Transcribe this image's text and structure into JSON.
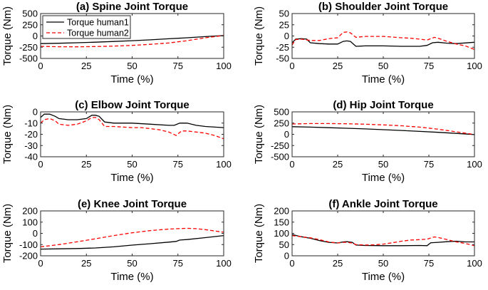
{
  "chart_data": [
    {
      "type": "line",
      "title": "(a) Spine Joint Torque",
      "xlabel": "Time (%)",
      "ylabel": "Torque (Nm)",
      "xlim": [
        0,
        100
      ],
      "ylim": [
        -500,
        500
      ],
      "xticks": [
        0,
        25,
        50,
        75,
        100
      ],
      "yticks": [
        500,
        250,
        0,
        -250,
        -500
      ],
      "legend": "top-left",
      "series": [
        {
          "name": "Torque human1",
          "color": "#000000",
          "dash": "solid",
          "x": [
            0,
            10,
            20,
            30,
            40,
            50,
            60,
            70,
            80,
            90,
            100
          ],
          "y": [
            -170,
            -162,
            -150,
            -138,
            -122,
            -105,
            -85,
            -62,
            -40,
            -15,
            10
          ]
        },
        {
          "name": "Torque human2",
          "color": "#ff0000",
          "dash": "dashed",
          "x": [
            0,
            10,
            20,
            30,
            40,
            50,
            60,
            70,
            80,
            90,
            100
          ],
          "y": [
            -230,
            -240,
            -242,
            -235,
            -225,
            -210,
            -185,
            -155,
            -105,
            -40,
            10
          ]
        }
      ]
    },
    {
      "type": "line",
      "title": "(b) Shoulder Joint Torque",
      "xlabel": "Time (%)",
      "ylabel": "Torque (Nm)",
      "xlim": [
        0,
        100
      ],
      "ylim": [
        -50,
        50
      ],
      "xticks": [
        0,
        25,
        50,
        75,
        100
      ],
      "yticks": [
        50,
        25,
        0,
        -25,
        -50
      ],
      "series": [
        {
          "name": "Torque human1",
          "color": "#000000",
          "dash": "solid",
          "x": [
            0,
            2,
            5,
            8,
            10,
            15,
            20,
            25,
            28,
            30,
            32,
            35,
            40,
            50,
            60,
            70,
            74,
            77,
            80,
            85,
            90,
            100
          ],
          "y": [
            -15,
            -7,
            -6,
            -7,
            -15,
            -17,
            -18,
            -18,
            -12,
            -11,
            -12,
            -23,
            -22,
            -22,
            -23,
            -23,
            -21,
            -15,
            -14,
            -16,
            -17,
            -14
          ]
        },
        {
          "name": "Torque human2",
          "color": "#ff0000",
          "dash": "dashed",
          "x": [
            0,
            2,
            5,
            10,
            15,
            20,
            25,
            28,
            30,
            32,
            35,
            40,
            50,
            60,
            65,
            70,
            74,
            78,
            80,
            85,
            90,
            95,
            100
          ],
          "y": [
            -20,
            -8,
            -7,
            -10,
            -10,
            -6,
            -4,
            8,
            9,
            7,
            -3,
            -1,
            -1,
            -4,
            -5,
            -7,
            -9,
            -3,
            -5,
            -12,
            -18,
            -22,
            -30
          ]
        }
      ]
    },
    {
      "type": "line",
      "title": "(c) Elbow Joint Torque",
      "xlabel": "Time (%)",
      "ylabel": "Torque (Nm)",
      "xlim": [
        0,
        100
      ],
      "ylim": [
        -40,
        0
      ],
      "xticks": [
        0,
        25,
        50,
        75,
        100
      ],
      "yticks": [
        0,
        -10,
        -20,
        -30,
        -40
      ],
      "series": [
        {
          "name": "Torque human1",
          "color": "#000000",
          "dash": "solid",
          "x": [
            0,
            2,
            5,
            8,
            10,
            15,
            20,
            25,
            28,
            30,
            32,
            35,
            40,
            50,
            60,
            70,
            73,
            76,
            80,
            85,
            90,
            100
          ],
          "y": [
            -5,
            -2,
            -2,
            -4,
            -6,
            -7,
            -7,
            -6,
            -3,
            -3,
            -4,
            -9,
            -10,
            -10,
            -11,
            -12,
            -12,
            -10,
            -10,
            -12,
            -13,
            -14
          ]
        },
        {
          "name": "Torque human2",
          "color": "#ff0000",
          "dash": "dashed",
          "x": [
            0,
            2,
            5,
            8,
            10,
            15,
            20,
            25,
            28,
            30,
            32,
            35,
            40,
            50,
            55,
            60,
            65,
            70,
            74,
            77,
            80,
            85,
            90,
            95,
            100
          ],
          "y": [
            -10,
            -7,
            -6,
            -8,
            -11,
            -12,
            -11,
            -8,
            -5,
            -5,
            -7,
            -13,
            -13,
            -14,
            -14,
            -15,
            -16,
            -18,
            -21,
            -17,
            -17,
            -18,
            -19,
            -21,
            -24
          ]
        }
      ]
    },
    {
      "type": "line",
      "title": "(d) Hip Joint Torque",
      "xlabel": "Time (%)",
      "ylabel": "Torque (Nm)",
      "xlim": [
        0,
        100
      ],
      "ylim": [
        -500,
        500
      ],
      "xticks": [
        0,
        25,
        50,
        75,
        100
      ],
      "yticks": [
        500,
        250,
        0,
        -250,
        -500
      ],
      "series": [
        {
          "name": "Torque human1",
          "color": "#000000",
          "dash": "solid",
          "x": [
            0,
            10,
            20,
            30,
            40,
            50,
            60,
            70,
            80,
            90,
            100
          ],
          "y": [
            170,
            160,
            148,
            135,
            120,
            103,
            85,
            65,
            45,
            20,
            -5
          ]
        },
        {
          "name": "Torque human2",
          "color": "#ff0000",
          "dash": "dashed",
          "x": [
            0,
            10,
            20,
            30,
            40,
            50,
            60,
            70,
            80,
            90,
            100
          ],
          "y": [
            230,
            240,
            240,
            235,
            225,
            210,
            190,
            160,
            115,
            55,
            -5
          ]
        }
      ]
    },
    {
      "type": "line",
      "title": "(e) Knee Joint Torque",
      "xlabel": "Time (%)",
      "ylabel": "Torque (Nm)",
      "xlim": [
        0,
        100
      ],
      "ylim": [
        -200,
        200
      ],
      "xticks": [
        0,
        25,
        50,
        75,
        100
      ],
      "yticks": [
        200,
        100,
        0,
        -100,
        -200
      ],
      "series": [
        {
          "name": "Torque human1",
          "color": "#000000",
          "dash": "solid",
          "x": [
            0,
            10,
            20,
            30,
            40,
            50,
            60,
            70,
            74,
            76,
            80,
            90,
            100
          ],
          "y": [
            -140,
            -138,
            -135,
            -130,
            -120,
            -105,
            -92,
            -78,
            -72,
            -60,
            -55,
            -38,
            -20
          ]
        },
        {
          "name": "Torque human2",
          "color": "#ff0000",
          "dash": "dashed",
          "x": [
            0,
            10,
            20,
            30,
            40,
            50,
            60,
            70,
            75,
            80,
            85,
            90,
            100
          ],
          "y": [
            -120,
            -100,
            -75,
            -48,
            -20,
            5,
            25,
            38,
            42,
            45,
            42,
            33,
            10
          ]
        }
      ]
    },
    {
      "type": "line",
      "title": "(f) Ankle Joint Torque",
      "xlabel": "Time (%)",
      "ylabel": "Torque (Nm)",
      "xlim": [
        0,
        100
      ],
      "ylim": [
        0,
        200
      ],
      "xticks": [
        0,
        25,
        50,
        75,
        100
      ],
      "yticks": [
        200,
        150,
        100,
        50,
        0
      ],
      "series": [
        {
          "name": "Torque human1",
          "color": "#000000",
          "dash": "solid",
          "x": [
            0,
            5,
            10,
            15,
            20,
            25,
            28,
            30,
            33,
            35,
            40,
            50,
            60,
            70,
            74,
            76,
            80,
            85,
            90,
            95,
            100
          ],
          "y": [
            95,
            85,
            78,
            68,
            60,
            57,
            62,
            63,
            60,
            48,
            46,
            45,
            45,
            46,
            45,
            58,
            60,
            63,
            65,
            62,
            62
          ]
        },
        {
          "name": "Torque human2",
          "color": "#ff0000",
          "dash": "dashed",
          "x": [
            0,
            5,
            10,
            15,
            20,
            25,
            28,
            30,
            33,
            35,
            40,
            45,
            50,
            55,
            60,
            65,
            70,
            74,
            78,
            80,
            85,
            90,
            95,
            100
          ],
          "y": [
            90,
            85,
            80,
            72,
            62,
            57,
            60,
            60,
            57,
            50,
            48,
            49,
            52,
            58,
            65,
            70,
            72,
            74,
            84,
            82,
            72,
            62,
            55,
            45
          ]
        }
      ]
    }
  ]
}
